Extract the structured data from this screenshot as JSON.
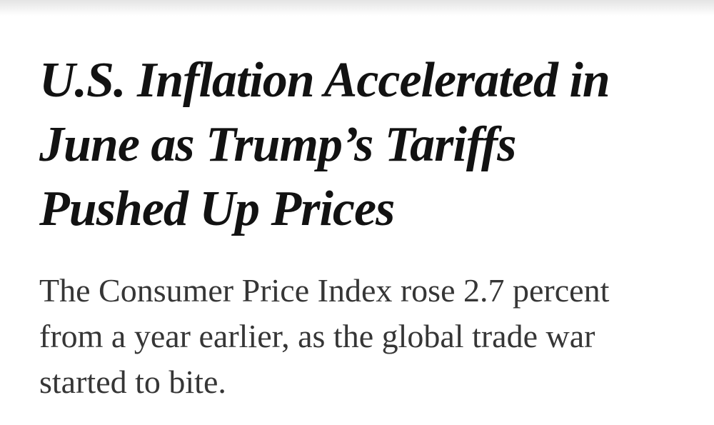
{
  "headline": {
    "lines": [
      "U.S. Inflation Accelerated in",
      "June as Trump’s Tariffs",
      "Pushed Up Prices"
    ]
  },
  "summary": {
    "lines": [
      "The Consumer Price Index rose 2.7 percent",
      "from a year earlier, as the global trade war",
      "started to bite."
    ]
  }
}
